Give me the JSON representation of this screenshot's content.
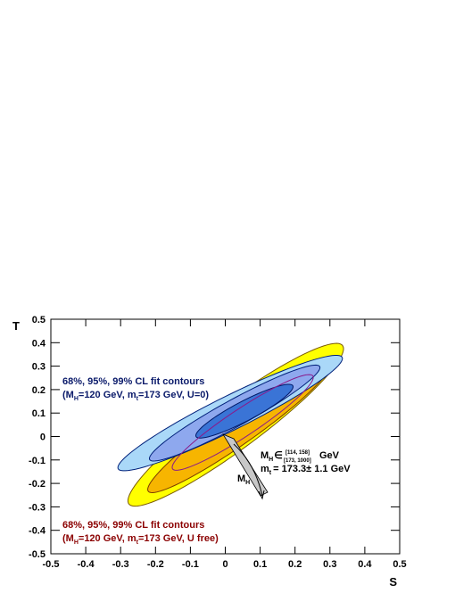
{
  "chart_data": {
    "type": "contour",
    "xlabel": "S",
    "ylabel": "T",
    "xlim": [
      -0.5,
      0.5
    ],
    "ylim": [
      -0.5,
      0.5
    ],
    "xticks": [
      -0.5,
      -0.4,
      -0.3,
      -0.2,
      -0.1,
      0,
      0.1,
      0.2,
      0.3,
      0.4,
      0.5
    ],
    "yticks": [
      -0.5,
      -0.4,
      -0.3,
      -0.2,
      -0.1,
      0,
      0.1,
      0.2,
      0.3,
      0.4,
      0.5
    ],
    "contours": [
      {
        "color": "#ffff00",
        "stroke": "#7a5a00",
        "center": [
          0.03,
          0.05
        ],
        "axis1": [
          0.305,
          0.34
        ],
        "axis2": [
          -0.05,
          0.07
        ]
      },
      {
        "color": "#f7b500",
        "stroke": "#7a3a00",
        "center": [
          0.04,
          0.04
        ],
        "axis1": [
          0.26,
          0.275
        ],
        "axis2": [
          -0.035,
          0.05
        ]
      },
      {
        "color": "#aad8f8",
        "stroke": "#00207a",
        "center": [
          0.014,
          0.1
        ],
        "axis1": [
          0.32,
          0.24
        ],
        "axis2": [
          -0.035,
          0.055
        ]
      },
      {
        "color": "#8ea8ee",
        "stroke": "#00207a",
        "center": [
          0.027,
          0.1
        ],
        "axis1": [
          0.243,
          0.2
        ],
        "axis2": [
          -0.027,
          0.043
        ]
      },
      {
        "color": "#3a74d6",
        "stroke": "#001a6a",
        "center": [
          0.055,
          0.108
        ],
        "axis1": [
          0.138,
          0.11
        ],
        "axis2": [
          -0.02,
          0.032
        ]
      },
      {
        "color": "none",
        "stroke": "#8a1a8a",
        "center": [
          0.05,
          0.06
        ],
        "axis1": [
          0.2,
          0.2
        ],
        "axis2": [
          -0.03,
          0.04
        ]
      }
    ],
    "legend_u0": {
      "title": "68%, 95%, 99% CL fit contours",
      "parts": [
        "(M",
        "H",
        "=120 GeV, m",
        "t",
        "=173 GeV, U=0)"
      ]
    },
    "legend_ufree": {
      "title": "68%, 95%, 99% CL fit contours",
      "parts": [
        "(M",
        "H",
        "=120 GeV, m",
        "t",
        "=173 GeV, U free)"
      ]
    },
    "sm_annotation": {
      "mh": [
        "M",
        "H",
        "∈",
        "[114, 158]",
        "[173, 1000]",
        "GeV"
      ],
      "mt": [
        "m",
        "t",
        "= 173.3± 1.1 GeV"
      ],
      "arrow": [
        "M",
        "H"
      ]
    }
  }
}
